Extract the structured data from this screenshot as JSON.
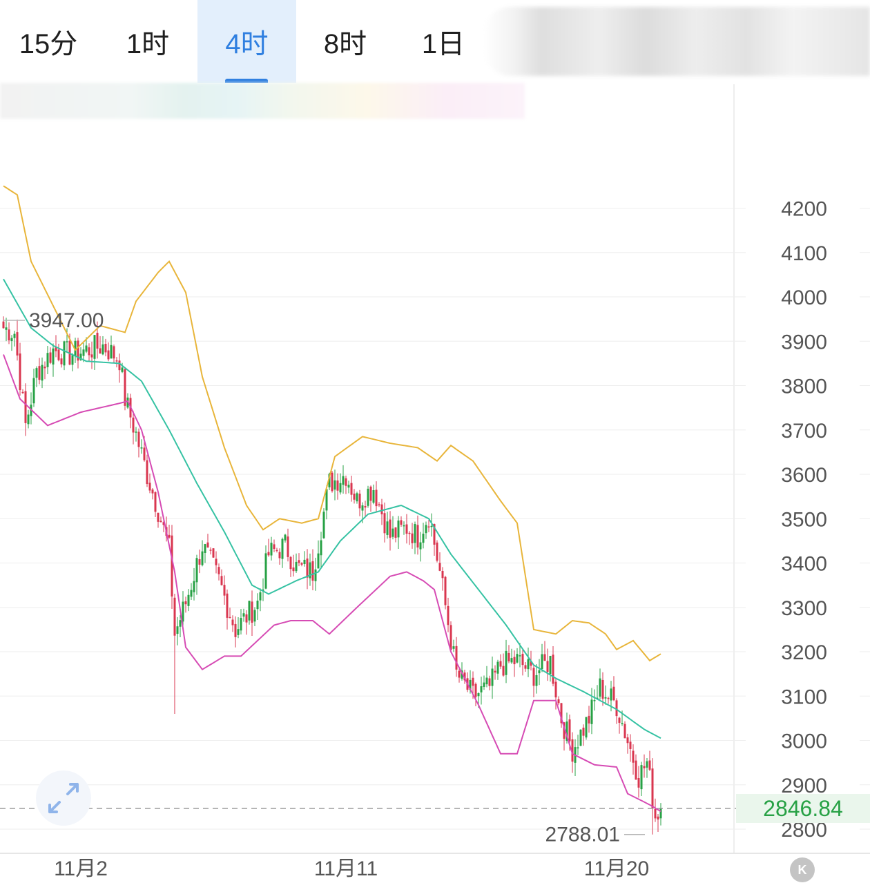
{
  "tabs": [
    {
      "label": "15分",
      "active": false
    },
    {
      "label": "1时",
      "active": false
    },
    {
      "label": "4时",
      "active": true
    },
    {
      "label": "8时",
      "active": false
    },
    {
      "label": "1日",
      "active": false
    }
  ],
  "current_price_label": "2846.84",
  "k_icon_label": "K",
  "colors": {
    "up": "#27a145",
    "down": "#d9364f",
    "upper_band": "#e8b53a",
    "middle_band": "#35c2a3",
    "lower_band": "#d64bb4",
    "accent": "#2f7fe0"
  },
  "chart_data": {
    "type": "candlestick",
    "title": "",
    "ylim": [
      2760,
      4420
    ],
    "y_ticks": [
      2800,
      2900,
      3000,
      3100,
      3200,
      3300,
      3400,
      3500,
      3600,
      3700,
      3800,
      3900,
      4000,
      4100,
      4200
    ],
    "y_tick_labels": [
      "2800",
      "2900",
      "3000",
      "3100",
      "3200",
      "3300",
      "3400",
      "3500",
      "3600",
      "3700",
      "3800",
      "3900",
      "4000",
      "4100",
      "4200"
    ],
    "x_tick_labels": [
      "11月2",
      "11月11",
      "11月20"
    ],
    "x_tick_candle_index": [
      28,
      124,
      222
    ],
    "high_marker": {
      "label": "3947.00",
      "value": 3947.0
    },
    "low_marker": {
      "label": "2788.01",
      "value": 2788.01
    },
    "current_price": 2846.84,
    "upper_band": [
      [
        0,
        4250
      ],
      [
        5,
        4230
      ],
      [
        10,
        4080
      ],
      [
        18,
        3980
      ],
      [
        26,
        3880
      ],
      [
        35,
        3935
      ],
      [
        44,
        3920
      ],
      [
        48,
        3990
      ],
      [
        56,
        4055
      ],
      [
        60,
        4080
      ],
      [
        66,
        4010
      ],
      [
        72,
        3820
      ],
      [
        80,
        3660
      ],
      [
        88,
        3530
      ],
      [
        94,
        3475
      ],
      [
        100,
        3500
      ],
      [
        108,
        3490
      ],
      [
        114,
        3500
      ],
      [
        120,
        3640
      ],
      [
        130,
        3685
      ],
      [
        140,
        3670
      ],
      [
        150,
        3660
      ],
      [
        157,
        3630
      ],
      [
        162,
        3665
      ],
      [
        170,
        3630
      ],
      [
        180,
        3540
      ],
      [
        186,
        3490
      ],
      [
        192,
        3250
      ],
      [
        200,
        3240
      ],
      [
        206,
        3270
      ],
      [
        212,
        3265
      ],
      [
        218,
        3240
      ],
      [
        222,
        3205
      ],
      [
        228,
        3225
      ],
      [
        234,
        3180
      ],
      [
        238,
        3195
      ]
    ],
    "middle_band": [
      [
        0,
        4040
      ],
      [
        10,
        3930
      ],
      [
        18,
        3890
      ],
      [
        30,
        3855
      ],
      [
        42,
        3850
      ],
      [
        50,
        3810
      ],
      [
        60,
        3700
      ],
      [
        70,
        3580
      ],
      [
        80,
        3470
      ],
      [
        90,
        3350
      ],
      [
        96,
        3330
      ],
      [
        106,
        3360
      ],
      [
        114,
        3380
      ],
      [
        122,
        3450
      ],
      [
        132,
        3510
      ],
      [
        144,
        3530
      ],
      [
        154,
        3500
      ],
      [
        162,
        3420
      ],
      [
        172,
        3340
      ],
      [
        182,
        3260
      ],
      [
        192,
        3170
      ],
      [
        200,
        3140
      ],
      [
        210,
        3110
      ],
      [
        222,
        3070
      ],
      [
        232,
        3025
      ],
      [
        238,
        3005
      ]
    ],
    "lower_band": [
      [
        0,
        3870
      ],
      [
        6,
        3770
      ],
      [
        16,
        3710
      ],
      [
        28,
        3740
      ],
      [
        42,
        3760
      ],
      [
        45,
        3765
      ],
      [
        50,
        3700
      ],
      [
        56,
        3560
      ],
      [
        62,
        3380
      ],
      [
        66,
        3210
      ],
      [
        72,
        3160
      ],
      [
        80,
        3190
      ],
      [
        86,
        3190
      ],
      [
        98,
        3260
      ],
      [
        104,
        3270
      ],
      [
        112,
        3270
      ],
      [
        118,
        3240
      ],
      [
        128,
        3300
      ],
      [
        140,
        3370
      ],
      [
        146,
        3380
      ],
      [
        152,
        3360
      ],
      [
        156,
        3340
      ],
      [
        162,
        3200
      ],
      [
        172,
        3080
      ],
      [
        180,
        2970
      ],
      [
        186,
        2970
      ],
      [
        192,
        3090
      ],
      [
        200,
        3090
      ],
      [
        206,
        2970
      ],
      [
        214,
        2945
      ],
      [
        222,
        2940
      ],
      [
        226,
        2880
      ],
      [
        234,
        2855
      ],
      [
        238,
        2840
      ]
    ],
    "anchors": [
      [
        0,
        3930
      ],
      [
        4,
        3920
      ],
      [
        8,
        3710
      ],
      [
        12,
        3830
      ],
      [
        18,
        3880
      ],
      [
        24,
        3870
      ],
      [
        30,
        3880
      ],
      [
        36,
        3890
      ],
      [
        42,
        3860
      ],
      [
        44,
        3770
      ],
      [
        48,
        3690
      ],
      [
        52,
        3600
      ],
      [
        56,
        3520
      ],
      [
        60,
        3430
      ],
      [
        62,
        3240
      ],
      [
        66,
        3310
      ],
      [
        72,
        3440
      ],
      [
        78,
        3360
      ],
      [
        84,
        3250
      ],
      [
        92,
        3310
      ],
      [
        96,
        3420
      ],
      [
        102,
        3440
      ],
      [
        106,
        3390
      ],
      [
        112,
        3380
      ],
      [
        118,
        3580
      ],
      [
        124,
        3600
      ],
      [
        128,
        3540
      ],
      [
        134,
        3570
      ],
      [
        140,
        3460
      ],
      [
        146,
        3480
      ],
      [
        150,
        3460
      ],
      [
        154,
        3510
      ],
      [
        158,
        3380
      ],
      [
        164,
        3150
      ],
      [
        170,
        3100
      ],
      [
        176,
        3120
      ],
      [
        180,
        3170
      ],
      [
        186,
        3180
      ],
      [
        192,
        3150
      ],
      [
        198,
        3180
      ],
      [
        202,
        3050
      ],
      [
        206,
        2980
      ],
      [
        212,
        3050
      ],
      [
        216,
        3120
      ],
      [
        222,
        3080
      ],
      [
        226,
        3000
      ],
      [
        230,
        2920
      ],
      [
        233,
        2950
      ],
      [
        236,
        2830
      ],
      [
        238,
        2846.84
      ]
    ]
  }
}
